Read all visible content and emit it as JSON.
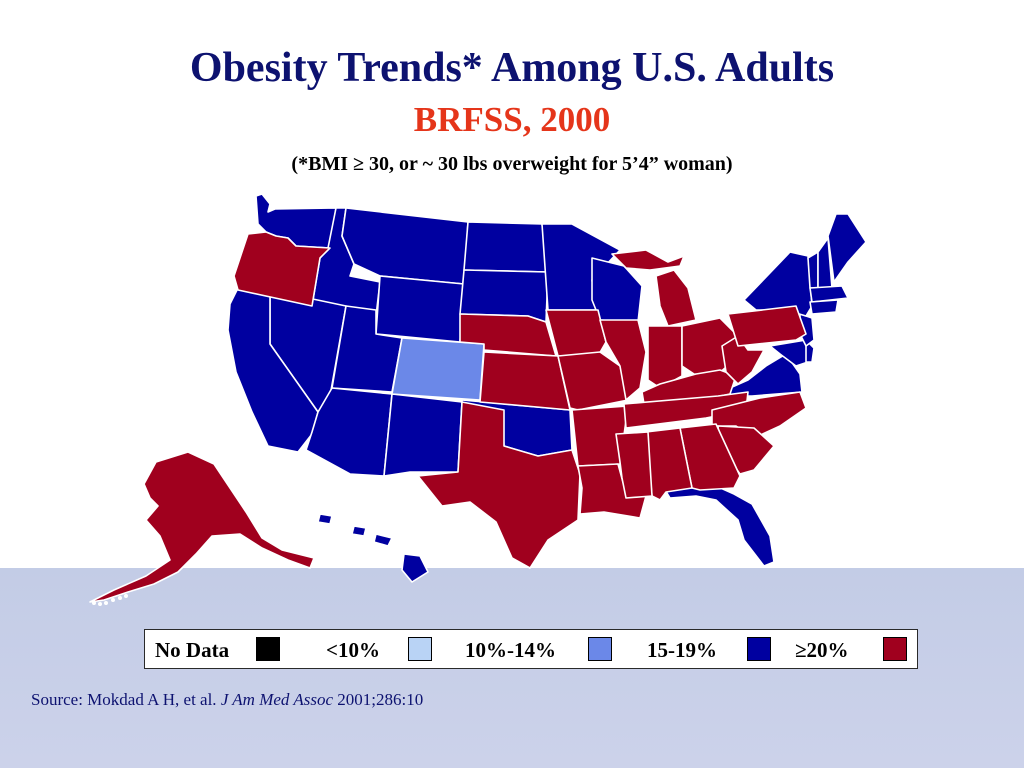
{
  "title": "Obesity Trends* Among U.S. Adults",
  "subtitle": "BRFSS, 2000",
  "note": "(*BMI ≥ 30, or ~ 30 lbs overweight for 5’4” woman)",
  "legend": {
    "items": [
      {
        "label": "No Data",
        "color": "#000000"
      },
      {
        "label": "<10%",
        "color": "#b9d3f5"
      },
      {
        "label": "10%-14%",
        "color": "#6b88e8"
      },
      {
        "label": "15-19%",
        "color": "#0000a0"
      },
      {
        "label": "≥20%",
        "color": "#a0001e"
      }
    ]
  },
  "source": {
    "prefix": "Source: Mokdad A H, et al. ",
    "journal": "J Am Med Assoc",
    "suffix": " 2001;286:10"
  }
}
